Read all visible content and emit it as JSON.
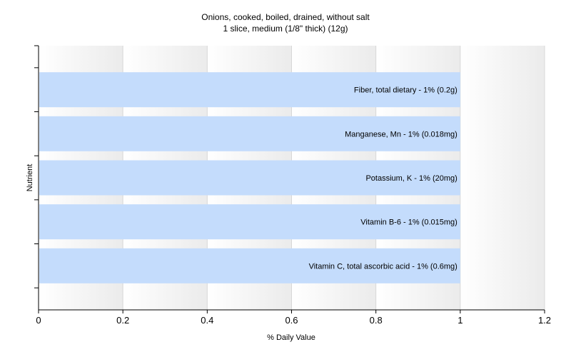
{
  "chart_data": {
    "type": "bar",
    "orientation": "horizontal",
    "title": "Onions, cooked, boiled, drained, without salt",
    "subtitle": "1 slice, medium (1/8\" thick) (12g)",
    "xlabel": "% Daily Value",
    "ylabel": "Nutrient",
    "xlim": [
      0,
      1.2
    ],
    "xticks": [
      "0",
      "0.2",
      "0.4",
      "0.6",
      "0.8",
      "1",
      "1.2"
    ],
    "grid": true,
    "bars": [
      {
        "label": "Fiber, total dietary - 1% (0.2g)",
        "value": 1
      },
      {
        "label": "Manganese, Mn - 1% (0.018mg)",
        "value": 1
      },
      {
        "label": "Potassium, K - 1% (20mg)",
        "value": 1
      },
      {
        "label": "Vitamin B-6 - 1% (0.015mg)",
        "value": 1
      },
      {
        "label": "Vitamin C, total ascorbic acid - 1% (0.6mg)",
        "value": 1
      }
    ],
    "colors": {
      "bar": "#c4dcfc",
      "band_light": "#ffffff",
      "band_dark": "#ebebeb",
      "grid": "#d8d8d8",
      "axis": "#000000"
    }
  }
}
